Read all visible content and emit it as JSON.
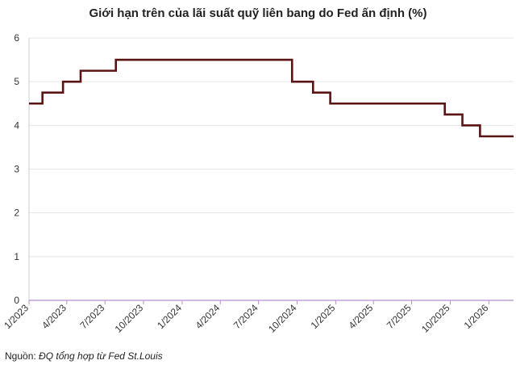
{
  "chart_data": {
    "type": "line",
    "title": "Giới hạn trên của lãi suất quỹ liên bang do Fed ấn định (%)",
    "xlabel": "",
    "ylabel": "",
    "ylim": [
      0,
      6
    ],
    "yticks": [
      0,
      1,
      2,
      3,
      4,
      5,
      6
    ],
    "xlim": [
      "2023-01-01",
      "2026-03-01"
    ],
    "xticks": [
      "1/2023",
      "4/2023",
      "7/2023",
      "10/2023",
      "1/2024",
      "4/2024",
      "7/2024",
      "10/2024",
      "1/2025",
      "4/2025",
      "7/2025",
      "10/2025",
      "1/2026"
    ],
    "grid": "horizontal",
    "line_color": "#5a1414",
    "step": true,
    "series": [
      {
        "x": [
          "2023-01-01",
          "2023-02-02",
          "2023-03-23",
          "2023-05-04",
          "2023-07-27",
          "2024-09-19",
          "2024-11-08",
          "2024-12-19",
          "2025-09-18",
          "2025-10-30",
          "2025-12-11",
          "2026-03-01"
        ],
        "values": [
          4.5,
          4.75,
          5.0,
          5.25,
          5.5,
          5.0,
          4.75,
          4.5,
          4.25,
          4.0,
          3.75,
          3.75
        ]
      }
    ]
  },
  "source": {
    "label": "Nguồn: ",
    "text": "ĐQ tổng hợp từ Fed St.Louis"
  }
}
